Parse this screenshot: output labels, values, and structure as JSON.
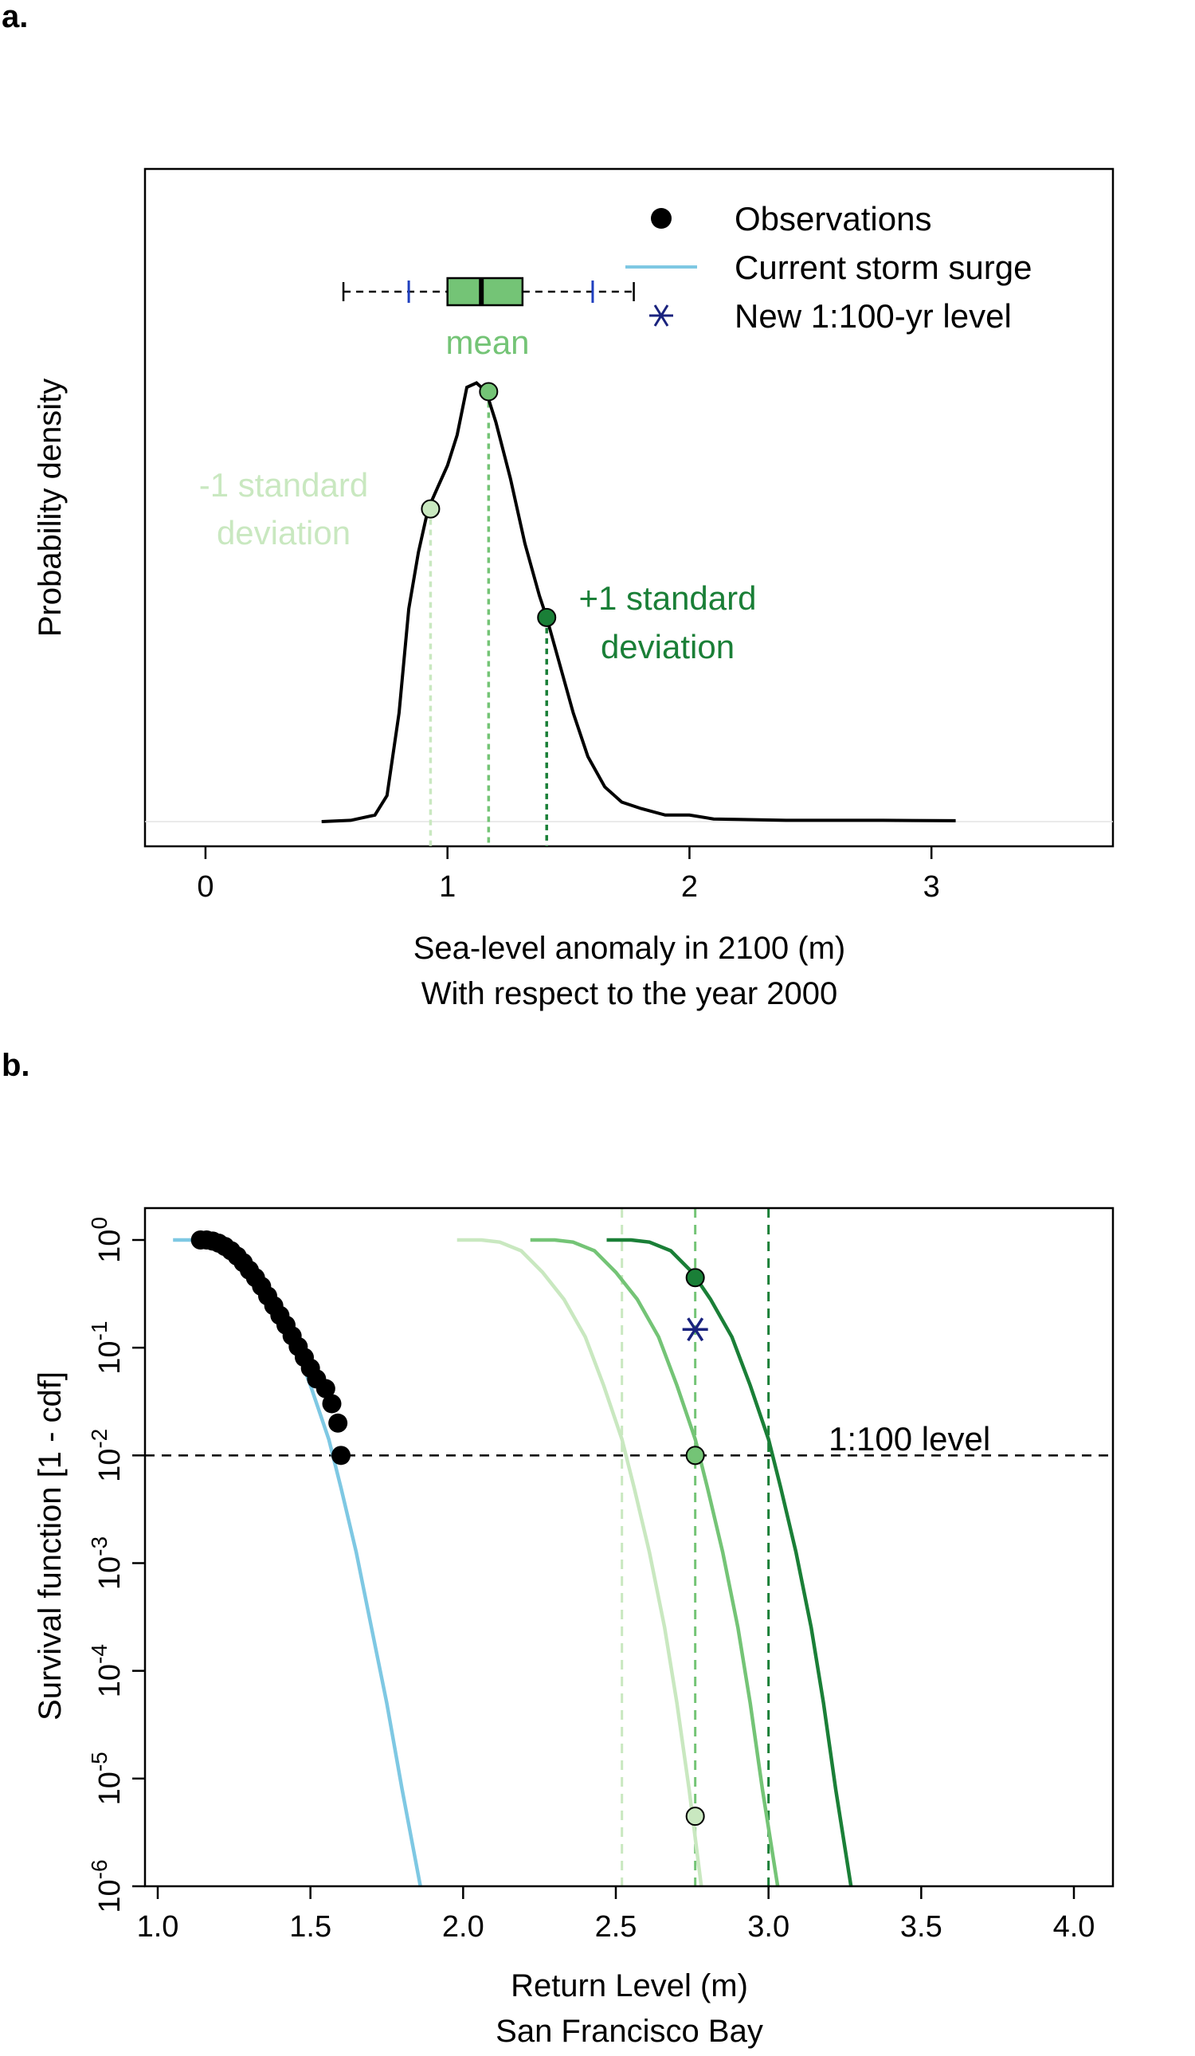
{
  "colors": {
    "black": "#000000",
    "current": "#7ec8e3",
    "minus_sd": "#c9e8c0",
    "mean": "#74c476",
    "plus_sd": "#1a7f37",
    "star": "#1a237e",
    "box_fill": "#74c476",
    "whisker_tick": "#1f3fbf"
  },
  "chart_data": [
    {
      "panel": "a.",
      "type": "line",
      "xlabel": "Sea-level anomaly in 2100 (m)",
      "xlabel2": "With respect to the year 2000",
      "ylabel": "Probability density",
      "xlim": [
        -0.25,
        3.75
      ],
      "xticks": [
        "0",
        "1",
        "2",
        "3"
      ],
      "xtick_values": [
        0,
        1,
        2,
        3
      ],
      "ylim": [
        0,
        1.12
      ],
      "density": {
        "x": [
          0.48,
          0.6,
          0.7,
          0.75,
          0.8,
          0.84,
          0.88,
          0.92,
          0.96,
          1.0,
          1.04,
          1.08,
          1.12,
          1.16,
          1.2,
          1.26,
          1.32,
          1.38,
          1.41,
          1.46,
          1.52,
          1.58,
          1.65,
          1.72,
          1.8,
          1.9,
          2.0,
          2.1,
          2.2,
          2.4,
          2.6,
          2.8,
          3.1
        ],
        "y": [
          0.0,
          0.003,
          0.015,
          0.06,
          0.25,
          0.49,
          0.62,
          0.72,
          0.77,
          0.82,
          0.89,
          1.0,
          1.01,
          0.99,
          0.92,
          0.79,
          0.64,
          0.52,
          0.47,
          0.37,
          0.25,
          0.15,
          0.08,
          0.045,
          0.03,
          0.015,
          0.015,
          0.006,
          0.005,
          0.003,
          0.003,
          0.003,
          0.002
        ]
      },
      "markers": [
        {
          "name": "-1 sd",
          "x": 0.93,
          "y": 0.72,
          "color": "minus_sd"
        },
        {
          "name": "mean",
          "x": 1.17,
          "y": 0.99,
          "color": "mean"
        },
        {
          "name": "+1 sd",
          "x": 1.41,
          "y": 0.47,
          "color": "plus_sd"
        }
      ],
      "boxplot": {
        "min": 0.57,
        "whisker_tick_low": 0.84,
        "q1": 1.0,
        "median": 1.14,
        "q3": 1.31,
        "whisker_tick_high": 1.6,
        "max": 1.77,
        "fill": "box_fill"
      },
      "legend": {
        "position": "top-right",
        "items": [
          {
            "label": "Observations",
            "symbol": "dot"
          },
          {
            "label": "Current storm surge",
            "symbol": "line"
          },
          {
            "label": "New 1:100-yr level",
            "symbol": "star"
          }
        ]
      },
      "annotations": {
        "mean": "mean",
        "minus_sd_1": "-1 standard",
        "minus_sd_2": "deviation",
        "plus_sd_1": "+1 standard",
        "plus_sd_2": "deviation"
      }
    },
    {
      "panel": "b.",
      "type": "line",
      "xlabel": "Return Level (m)",
      "xlabel2": "San Francisco Bay",
      "ylabel": "Survival function [1 - cdf]",
      "log_y": true,
      "xlim": [
        1.0,
        4.0
      ],
      "xticks": [
        "1.0",
        "1.5",
        "2.0",
        "2.5",
        "3.0",
        "3.5",
        "4.0"
      ],
      "xtick_values": [
        1.0,
        1.5,
        2.0,
        2.5,
        3.0,
        3.5,
        4.0
      ],
      "yticks": [
        "10",
        "10",
        "10",
        "10",
        "10",
        "10",
        "10"
      ],
      "ytick_exponents": [
        "-6",
        "-5",
        "-4",
        "-3",
        "-2",
        "-1",
        "0"
      ],
      "ytick_values": [
        -6,
        -5,
        -4,
        -3,
        -2,
        -1,
        0
      ],
      "level_label": "1:100 level",
      "level_log10": -2,
      "curves": [
        {
          "name": "current",
          "color": "current",
          "x": [
            1.05,
            1.12,
            1.18,
            1.25,
            1.32,
            1.38,
            1.44,
            1.5,
            1.56,
            1.6,
            1.65,
            1.7,
            1.75,
            1.8,
            1.86
          ],
          "log10y": [
            0.0,
            0.0,
            -0.02,
            -0.1,
            -0.3,
            -0.55,
            -0.9,
            -1.35,
            -1.85,
            -2.3,
            -2.9,
            -3.6,
            -4.3,
            -5.1,
            -6.0
          ]
        },
        {
          "name": "minus_sd",
          "color": "minus_sd",
          "x": [
            1.98,
            2.06,
            2.12,
            2.19,
            2.26,
            2.33,
            2.4,
            2.46,
            2.52,
            2.56,
            2.61,
            2.66,
            2.7,
            2.74,
            2.78
          ],
          "log10y": [
            0.0,
            0.0,
            -0.02,
            -0.1,
            -0.3,
            -0.55,
            -0.9,
            -1.35,
            -1.85,
            -2.3,
            -2.9,
            -3.6,
            -4.3,
            -5.1,
            -6.0
          ]
        },
        {
          "name": "mean",
          "color": "mean",
          "x": [
            2.22,
            2.3,
            2.36,
            2.43,
            2.5,
            2.57,
            2.64,
            2.7,
            2.76,
            2.8,
            2.85,
            2.9,
            2.94,
            2.98,
            3.03
          ],
          "log10y": [
            0.0,
            0.0,
            -0.02,
            -0.1,
            -0.3,
            -0.55,
            -0.9,
            -1.35,
            -1.85,
            -2.3,
            -2.9,
            -3.6,
            -4.3,
            -5.1,
            -6.0
          ]
        },
        {
          "name": "plus_sd",
          "color": "plus_sd",
          "x": [
            2.47,
            2.55,
            2.61,
            2.68,
            2.75,
            2.81,
            2.88,
            2.94,
            3.0,
            3.04,
            3.09,
            3.14,
            3.18,
            3.22,
            3.27
          ],
          "log10y": [
            0.0,
            0.0,
            -0.02,
            -0.1,
            -0.3,
            -0.55,
            -0.9,
            -1.35,
            -1.85,
            -2.3,
            -2.9,
            -3.6,
            -4.3,
            -5.1,
            -6.0
          ]
        }
      ],
      "vlines": [
        {
          "x": 2.52,
          "color": "minus_sd"
        },
        {
          "x": 2.76,
          "color": "mean"
        },
        {
          "x": 3.0,
          "color": "plus_sd"
        }
      ],
      "observations": {
        "x": [
          1.14,
          1.16,
          1.18,
          1.2,
          1.22,
          1.24,
          1.26,
          1.28,
          1.3,
          1.32,
          1.34,
          1.36,
          1.38,
          1.4,
          1.42,
          1.44,
          1.46,
          1.48,
          1.5,
          1.52,
          1.55,
          1.57,
          1.59,
          1.6
        ],
        "log10y": [
          0.0,
          0.0,
          -0.01,
          -0.03,
          -0.06,
          -0.1,
          -0.15,
          -0.21,
          -0.28,
          -0.35,
          -0.43,
          -0.52,
          -0.61,
          -0.7,
          -0.79,
          -0.89,
          -0.99,
          -1.09,
          -1.19,
          -1.29,
          -1.38,
          -1.52,
          -1.7,
          -2.0
        ]
      },
      "points": [
        {
          "x": 2.76,
          "log10y": -0.35,
          "color": "plus_sd"
        },
        {
          "x": 2.76,
          "log10y": -2.0,
          "color": "mean"
        },
        {
          "x": 2.76,
          "log10y": -5.35,
          "color": "minus_sd"
        }
      ],
      "star": {
        "x": 2.76,
        "log10y": -0.83
      }
    }
  ]
}
